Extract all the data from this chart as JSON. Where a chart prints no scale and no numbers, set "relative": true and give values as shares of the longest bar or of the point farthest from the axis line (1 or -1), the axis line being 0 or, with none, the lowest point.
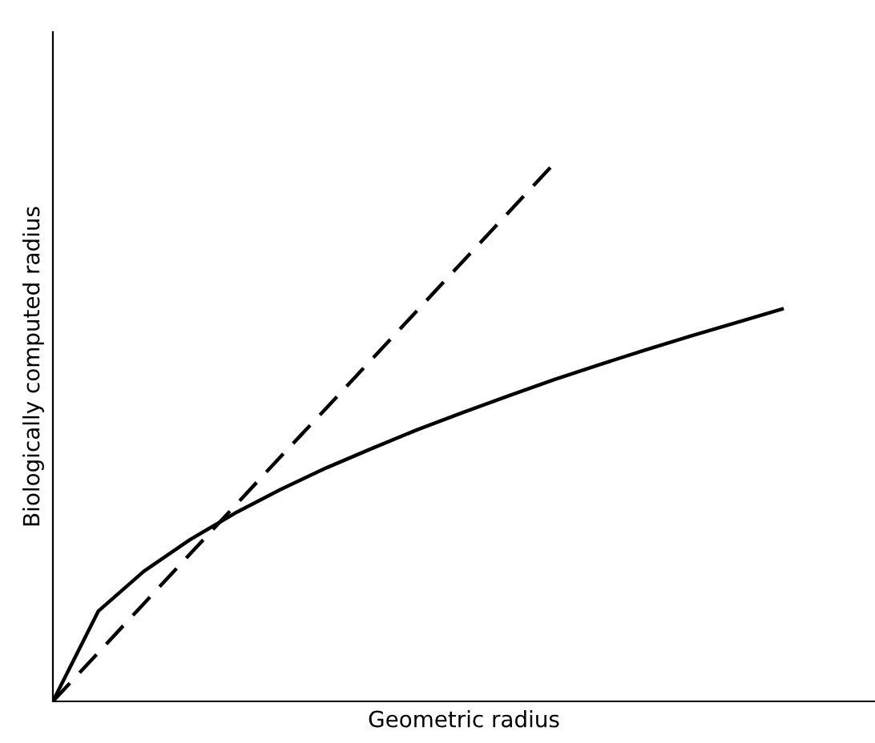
{
  "chart_data": {
    "type": "line",
    "relative": true,
    "xlabel": "Geometric radius",
    "ylabel": "Biologically computed radius",
    "categories": [
      null,
      null,
      null,
      null,
      null,
      null,
      null,
      null,
      null,
      null,
      null,
      null,
      null,
      null,
      null,
      null,
      null
    ],
    "series": [
      {
        "color": "#000000",
        "line_style": "dashed",
        "values": [
          0,
          0.091,
          0.182,
          0.273,
          0.364,
          0.455,
          0.545,
          0.636,
          0.727,
          0.818,
          0.909,
          1.0,
          null,
          null,
          null,
          null,
          null
        ]
      },
      {
        "color": "#000000",
        "line_style": "solid",
        "values": [
          0,
          0.168,
          0.242,
          0.3,
          0.35,
          0.394,
          0.434,
          0.47,
          0.505,
          0.537,
          0.568,
          0.598,
          0.626,
          0.653,
          0.679,
          0.704,
          0.729
        ]
      }
    ],
    "legend": false,
    "marker": "none"
  }
}
